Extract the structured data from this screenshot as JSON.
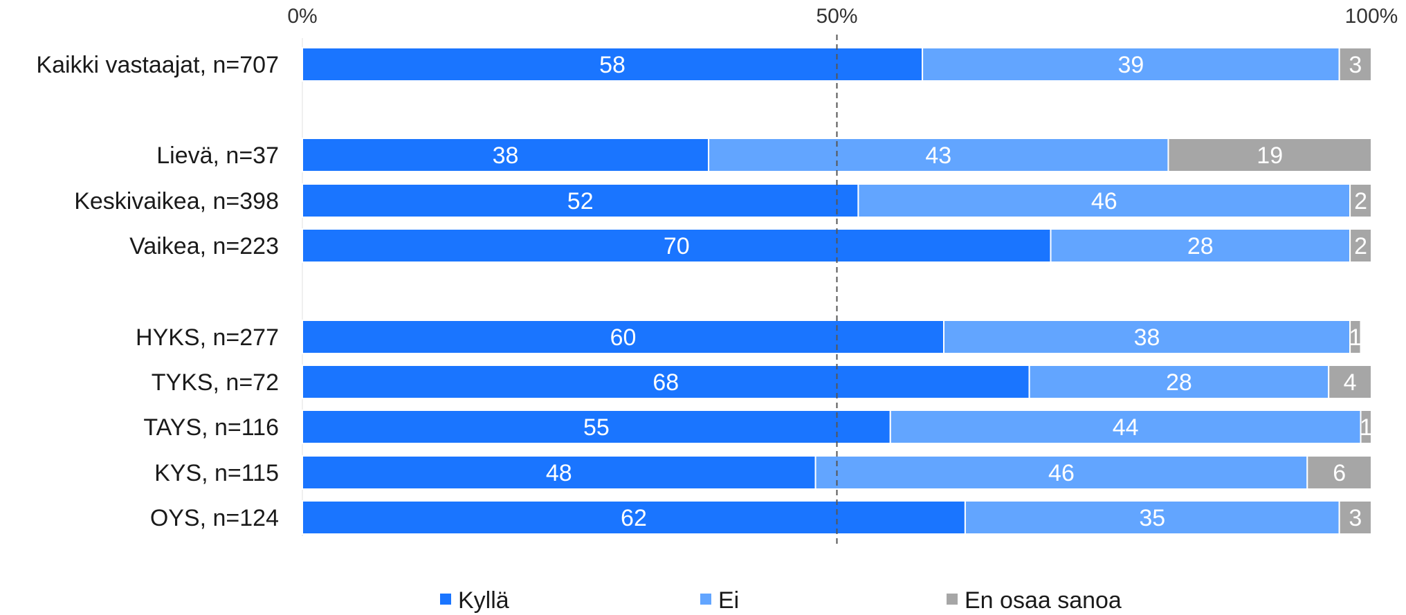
{
  "chart_data": {
    "type": "bar",
    "orientation": "horizontal",
    "stacked": "percent",
    "xlim": [
      0,
      100
    ],
    "x_ticks": [
      "0%",
      "50%",
      "100%"
    ],
    "reference_line": 50,
    "grid": false,
    "legend_position": "bottom",
    "categories": [
      "Kaikki vastaajat, n=707",
      "Lievä, n=37",
      "Keskivaikea, n=398",
      "Vaikea, n=223",
      "HYKS, n=277",
      "TYKS, n=72",
      "TAYS, n=116",
      "KYS, n=115",
      "OYS, n=124"
    ],
    "series": [
      {
        "name": "Kyllä",
        "color": "#1a75ff",
        "values": [
          58,
          38,
          52,
          70,
          60,
          68,
          55,
          48,
          62
        ]
      },
      {
        "name": "Ei",
        "color": "#62a5ff",
        "values": [
          39,
          43,
          46,
          28,
          38,
          28,
          44,
          46,
          35
        ]
      },
      {
        "name": "En osaa sanoa",
        "color": "#a6a6a6",
        "values": [
          3,
          19,
          2,
          2,
          1,
          4,
          1,
          6,
          3
        ]
      }
    ]
  }
}
